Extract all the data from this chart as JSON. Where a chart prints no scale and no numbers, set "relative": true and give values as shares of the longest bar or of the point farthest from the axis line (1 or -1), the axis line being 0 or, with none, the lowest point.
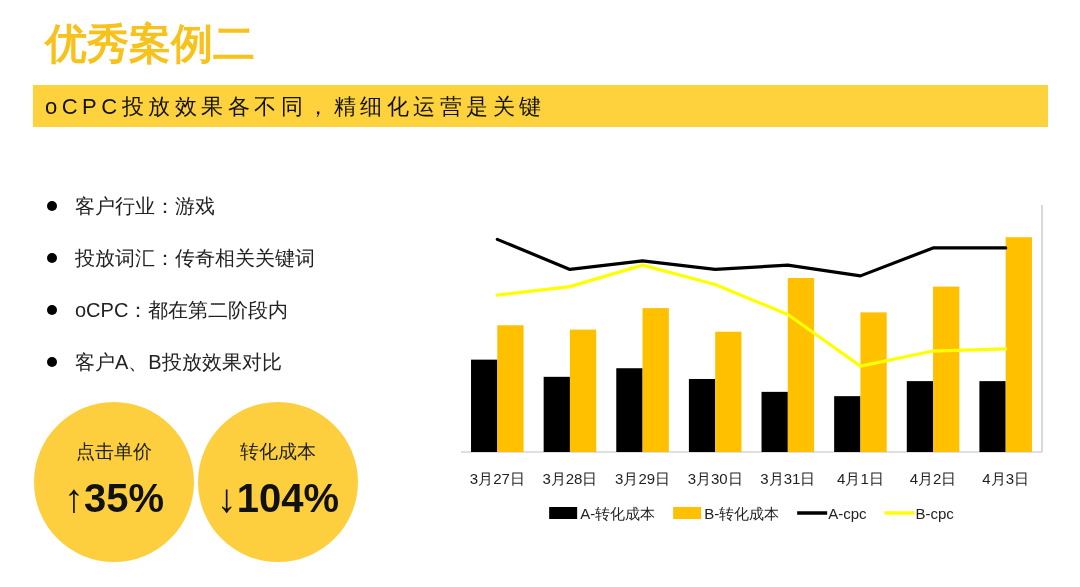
{
  "chart_data": {
    "type": "bar",
    "title": "优秀案例二",
    "subtitle": "oCPC投放效果各不同，精细化运营是关键",
    "categories": [
      "3月27日",
      "3月28日",
      "3月29日",
      "3月30日",
      "3月31日",
      "4月1日",
      "4月2日",
      "4月3日"
    ],
    "relative": true,
    "series": [
      {
        "name": "A-转化成本",
        "color": "#000000",
        "values": [
          0.43,
          0.35,
          0.39,
          0.34,
          0.28,
          0.26,
          0.33,
          0.33
        ]
      },
      {
        "name": "B-转化成本",
        "color": "#ffc000",
        "values": [
          0.59,
          0.57,
          0.67,
          0.56,
          0.81,
          0.65,
          0.77,
          1
        ]
      },
      {
        "name": "A-cpc",
        "type": "line",
        "color": "#000000",
        "values": [
          0.99,
          0.85,
          0.89,
          0.85,
          0.87,
          0.82,
          0.95,
          0.95
        ]
      },
      {
        "name": "B-cpc",
        "type": "line",
        "color": "#ffff00",
        "values": [
          0.73,
          0.77,
          0.87,
          0.78,
          0.64,
          0.4,
          0.47,
          0.48
        ]
      }
    ],
    "legend": "bottom",
    "annotations": [
      "客户行业：游戏",
      "投放词汇：传奇相关关键词",
      "oCPC：都在第二阶段内",
      "客户A、B投放效果对比",
      "点击单价",
      "↑35%",
      "转化成本",
      "↓104%"
    ]
  }
}
